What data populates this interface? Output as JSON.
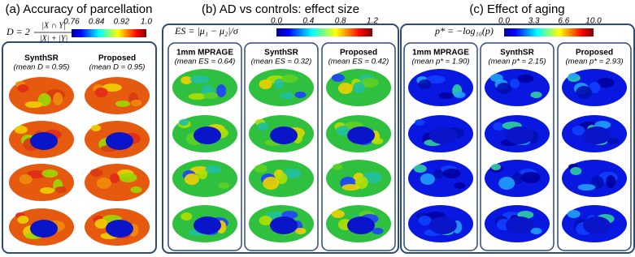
{
  "panels": [
    {
      "title": "(a) Accuracy of parcellation",
      "formula": {
        "lhs": "D = 2",
        "numerator": "|X ∩ Y|",
        "denominator": "|X| + |Y|"
      },
      "colorbar_ticks": [
        "0.76",
        "0.84",
        "0.92",
        "1.0"
      ],
      "columns": [
        {
          "label": "SynthSR",
          "mean": "(mean D = 0.95)"
        },
        {
          "label": "Proposed",
          "mean": "(mean D = 0.95)"
        }
      ]
    },
    {
      "title": "(b) AD vs controls: effect size",
      "formula": {
        "lhs": "ES = |μ₁ − μ₂|/σ"
      },
      "colorbar_ticks": [
        "0.0",
        "0.4",
        "0.8",
        "1.2"
      ],
      "columns": [
        {
          "label": "1mm MPRAGE",
          "mean": "(mean ES = 0.64)"
        },
        {
          "label": "SynthSR",
          "mean": "(mean ES = 0.32)"
        },
        {
          "label": "Proposed",
          "mean": "(mean ES = 0.42)"
        }
      ]
    },
    {
      "title": "(c) Effect of aging",
      "formula": {
        "lhs": "p* = −log₁₀(p)"
      },
      "colorbar_ticks": [
        "0.0",
        "3.3",
        "6.6",
        "10.0"
      ],
      "columns": [
        {
          "label": "1mm MPRAGE",
          "mean": "(mean p* = 1.90)"
        },
        {
          "label": "SynthSR",
          "mean": "(mean p* = 2.15)"
        },
        {
          "label": "Proposed",
          "mean": "(mean p* = 2.93)"
        }
      ]
    }
  ]
}
